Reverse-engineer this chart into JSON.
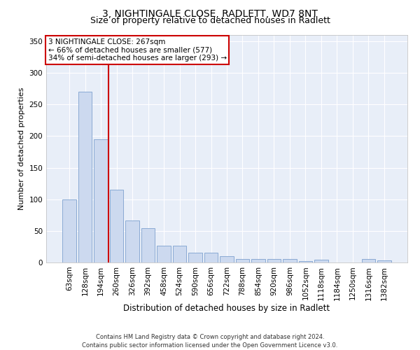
{
  "title1": "3, NIGHTINGALE CLOSE, RADLETT, WD7 8NT",
  "title2": "Size of property relative to detached houses in Radlett",
  "xlabel": "Distribution of detached houses by size in Radlett",
  "ylabel": "Number of detached properties",
  "categories": [
    "63sqm",
    "128sqm",
    "194sqm",
    "260sqm",
    "326sqm",
    "392sqm",
    "458sqm",
    "524sqm",
    "590sqm",
    "656sqm",
    "722sqm",
    "788sqm",
    "854sqm",
    "920sqm",
    "986sqm",
    "1052sqm",
    "1118sqm",
    "1184sqm",
    "1250sqm",
    "1316sqm",
    "1382sqm"
  ],
  "values": [
    100,
    270,
    195,
    115,
    66,
    54,
    27,
    27,
    15,
    15,
    10,
    5,
    6,
    6,
    6,
    2,
    4,
    0,
    0,
    5,
    3
  ],
  "bar_color": "#ccd9ef",
  "bar_edge_color": "#8aaad4",
  "vline_color": "#cc0000",
  "vline_position": 2.5,
  "annotation_lines": [
    "3 NIGHTINGALE CLOSE: 267sqm",
    "← 66% of detached houses are smaller (577)",
    "34% of semi-detached houses are larger (293) →"
  ],
  "annotation_box_color": "#cc0000",
  "background_color": "#e8eef8",
  "grid_color": "#ffffff",
  "ylim": [
    0,
    360
  ],
  "yticks": [
    0,
    50,
    100,
    150,
    200,
    250,
    300,
    350
  ],
  "footer": "Contains HM Land Registry data © Crown copyright and database right 2024.\nContains public sector information licensed under the Open Government Licence v3.0.",
  "title1_fontsize": 10,
  "title2_fontsize": 9,
  "xlabel_fontsize": 8.5,
  "ylabel_fontsize": 8,
  "tick_fontsize": 7.5,
  "annotation_fontsize": 7.5,
  "footer_fontsize": 6
}
